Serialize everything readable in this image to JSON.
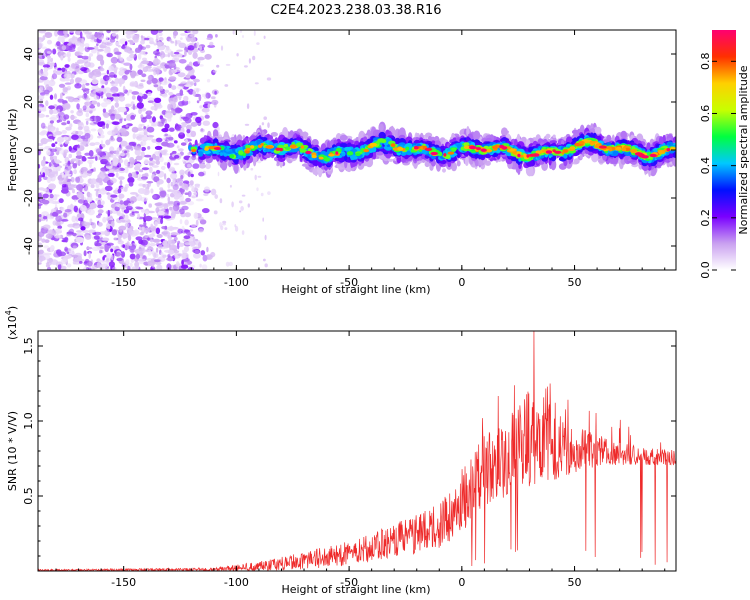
{
  "title": "C2E4.2023.238.03.38.R16",
  "chart_data": [
    {
      "type": "heatmap",
      "xlabel": "Height of straight line (km)",
      "ylabel": "Frequency (Hz)",
      "xlim": [
        -188,
        95
      ],
      "ylim": [
        -50,
        50
      ],
      "xticks": [
        -150,
        -100,
        -50,
        0,
        50
      ],
      "xtick_labels": [
        "-150",
        "-100",
        "-50",
        "0",
        "50"
      ],
      "yticks": [
        -40,
        -20,
        0,
        20,
        40
      ],
      "ytick_labels": [
        "-40",
        "-20",
        "0",
        "20",
        "40"
      ],
      "noise_region_km": [
        -188,
        -110
      ],
      "band_region_km": [
        -122,
        95
      ],
      "band_center_hz": 0,
      "band_halfwidth_hz": 5,
      "colorbar": {
        "label": "Normalized spectral amplitude",
        "range": [
          0.0,
          0.92
        ],
        "ticks": [
          0.0,
          0.2,
          0.4,
          0.6,
          0.8
        ],
        "tick_labels": [
          "0.0",
          "0.2",
          "0.4",
          "0.6",
          "0.8"
        ],
        "colormap": [
          "#ffffff",
          "#c9a0f0",
          "#7a00ff",
          "#0010ff",
          "#00c8ff",
          "#00ff40",
          "#c8ff00",
          "#ffd000",
          "#ff3000",
          "#ff0070"
        ]
      }
    },
    {
      "type": "line",
      "xlabel": "Height of straight line (km)",
      "ylabel": "SNR (10 * V/V)",
      "y_multiplier": "(x10",
      "y_multiplier_exp": "4",
      "y_multiplier_close": ")",
      "xlim": [
        -188,
        95
      ],
      "ylim": [
        0,
        16000
      ],
      "xticks": [
        -150,
        -100,
        -50,
        0,
        50
      ],
      "xtick_labels": [
        "-150",
        "-100",
        "-50",
        "0",
        "50"
      ],
      "yticks": [
        5000,
        10000,
        15000
      ],
      "ytick_labels": [
        "0.5",
        "1.0",
        "1.5"
      ],
      "color": "#ee2a2a",
      "envelope_km": [
        -188,
        -110,
        -90,
        -70,
        -50,
        -30,
        -10,
        0,
        10,
        20,
        30,
        40,
        50,
        60,
        70,
        80,
        95
      ],
      "envelope_snr": [
        100,
        200,
        600,
        1200,
        2000,
        3000,
        4500,
        6000,
        9000,
        10000,
        11500,
        10500,
        9500,
        9000,
        8500,
        8200,
        8000
      ],
      "baseline_snr": [
        0,
        0,
        0,
        100,
        400,
        800,
        1500,
        2500,
        4000,
        5000,
        5500,
        6000,
        6500,
        7000,
        7000,
        7000,
        7000
      ],
      "peak_km": 32,
      "peak_snr": 16000
    }
  ]
}
